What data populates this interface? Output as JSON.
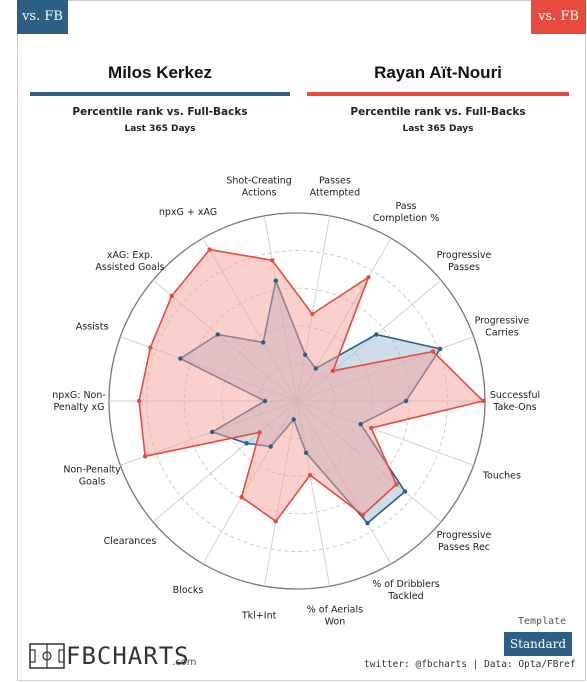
{
  "header": {
    "left_tab": "vs. FB",
    "right_tab": "vs. FB",
    "left_player": "Milos Kerkez",
    "right_player": "Rayan Aït-Nouri",
    "left_subtitle": "Percentile rank vs. Full-Backs",
    "right_subtitle": "Percentile rank vs. Full-Backs",
    "left_period": "Last 365 Days",
    "right_period": "Last 365 Days"
  },
  "colors": {
    "blue": "#2c5f86",
    "red": "#e84b3e",
    "blue_fill": "#9fbcd6",
    "red_fill": "#f4a29a"
  },
  "chart_data": {
    "type": "radar",
    "title": "",
    "scale": [
      0,
      100
    ],
    "grid": true,
    "categories": [
      "Passes Attempted",
      "Pass Completion %",
      "Progressive Passes",
      "Progressive Carries",
      "Successful Take-Ons",
      "Touches",
      "Progressive Passes Rec",
      "% of Dribblers Tackled",
      "% of Aerials Won",
      "Tkl+Int",
      "Blocks",
      "Clearances",
      "Non-Penalty Goals",
      "npxG: Non-Penalty xG",
      "Assists",
      "xAG: Exp. Assisted Goals",
      "npxG + xAG",
      "Shot-Creating Actions"
    ],
    "label_lines": [
      [
        "Passes",
        "Attempted"
      ],
      [
        "Pass",
        "Completion %"
      ],
      [
        "Progressive",
        "Passes"
      ],
      [
        "Progressive",
        "Carries"
      ],
      [
        "Successful",
        "Take-Ons"
      ],
      [
        "Touches"
      ],
      [
        "Progressive",
        "Passes Rec"
      ],
      [
        "% of Dribblers",
        "Tackled"
      ],
      [
        "% of Aerials",
        "Won"
      ],
      [
        "Tkl+Int"
      ],
      [
        "Blocks"
      ],
      [
        "Clearances"
      ],
      [
        "Non-Penalty",
        "Goals"
      ],
      [
        "npxG: Non-",
        "Penalty xG"
      ],
      [
        "Assists"
      ],
      [
        "xAG: Exp.",
        "Assisted Goals"
      ],
      [
        "npxG + xAG"
      ],
      [
        "Shot-Creating",
        "Actions"
      ]
    ],
    "series": [
      {
        "name": "Milos Kerkez",
        "color": "#2c5f86",
        "values": [
          25,
          20,
          55,
          81,
          58,
          36,
          75,
          75,
          28,
          10,
          28,
          35,
          48,
          17,
          66,
          55,
          36,
          65
        ]
      },
      {
        "name": "Rayan Aït-Nouri",
        "color": "#e84b3e",
        "values": [
          47,
          76,
          25,
          77,
          99,
          42,
          69,
          70,
          40,
          65,
          59,
          26,
          86,
          84,
          83,
          87,
          93,
          76
        ]
      }
    ]
  },
  "footer": {
    "template_label": "Template",
    "template_button": "Standard",
    "logo_text": "FBCHARTS",
    "logo_suffix": ".com",
    "credit": "twitter: @fbcharts | Data: Opta/FBref"
  }
}
